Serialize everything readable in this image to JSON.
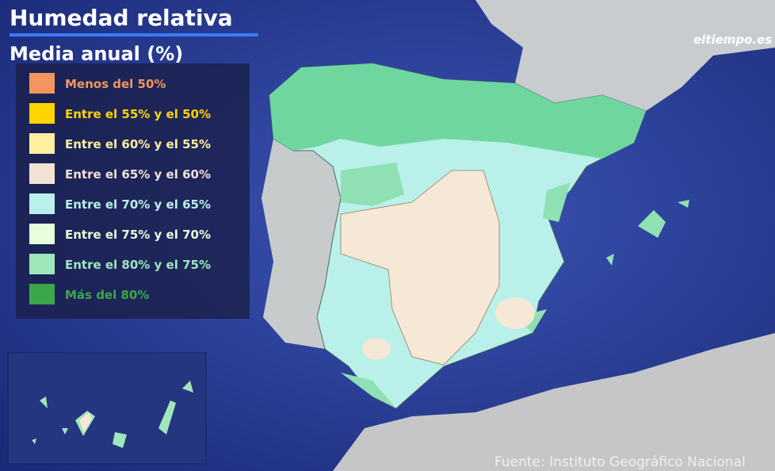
{
  "header": {
    "title": "Humedad relativa",
    "subtitle": "Media anual (%)"
  },
  "legend": {
    "items": [
      {
        "label": "Menos del 50%",
        "color": "#f2955f"
      },
      {
        "label": "Entre el 55% y el 50%",
        "color": "#ffd400"
      },
      {
        "label": "Entre el 60% y el 55%",
        "color": "#fff0a0"
      },
      {
        "label": "Entre el 65% y el 60%",
        "color": "#f2e2d6"
      },
      {
        "label": "Entre el 70% y el 65%",
        "color": "#b9f0ea"
      },
      {
        "label": "Entre el 75% y el 70%",
        "color": "#e6ffdc"
      },
      {
        "label": "Entre el 80% y el 75%",
        "color": "#9fe6bb"
      },
      {
        "label": "Más del 80%",
        "color": "#3aa84a"
      }
    ]
  },
  "logo": "eltiempo.es",
  "source": "Fuente: Instituto Geográfico Nacional"
}
